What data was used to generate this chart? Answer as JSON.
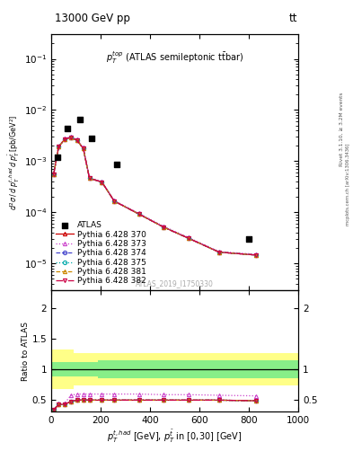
{
  "title_top": "13000 GeV pp",
  "title_right": "tt",
  "annotation": "$p_T^{top}$ (ATLAS semileptonic ttbar)",
  "watermark": "ATLAS_2019_I1750330",
  "right_label": "mcplots.cern.ch [arXiv:1306.3436]",
  "right_label2": "Rivet 3.1.10, ≥ 3.2M events",
  "ylabel_main": "d²σ / d p_T^{t,had} d p_T^{tbar} [pb/GeV²]",
  "ylabel_ratio": "Ratio to ATLAS",
  "xlabel": "p_T^{t,had} [GeV], p_T^{tbar} in [0,30] [GeV]",
  "xlim": [
    0,
    1000
  ],
  "ylim_main": [
    3e-06,
    0.3
  ],
  "ylim_ratio": [
    0.3,
    2.3
  ],
  "atlas_x": [
    25,
    65,
    115,
    165,
    265,
    800
  ],
  "atlas_y": [
    0.0012,
    0.0043,
    0.0065,
    0.0028,
    0.00085,
    3e-05
  ],
  "mc_x": [
    10,
    30,
    55,
    80,
    105,
    130,
    155,
    205,
    255,
    355,
    455,
    555,
    680,
    830
  ],
  "py370_y": [
    0.00055,
    0.0019,
    0.0027,
    0.0029,
    0.00255,
    0.00175,
    0.00046,
    0.00039,
    0.000165,
    9.2e-05,
    5.1e-05,
    3.1e-05,
    1.65e-05,
    1.45e-05
  ],
  "py373_y": [
    0.00055,
    0.0019,
    0.0028,
    0.003,
    0.00265,
    0.00185,
    0.00047,
    0.0004,
    0.00017,
    9.5e-05,
    5.3e-05,
    3.2e-05,
    1.7e-05,
    1.5e-05
  ],
  "py374_y": [
    0.00055,
    0.0019,
    0.0027,
    0.0029,
    0.00255,
    0.00175,
    0.00046,
    0.00039,
    0.000165,
    9.2e-05,
    5.1e-05,
    3.1e-05,
    1.65e-05,
    1.45e-05
  ],
  "py375_y": [
    0.00055,
    0.0019,
    0.00272,
    0.0029,
    0.00255,
    0.00175,
    0.00046,
    0.00039,
    0.000165,
    9.2e-05,
    5.1e-05,
    3.1e-05,
    1.65e-05,
    1.45e-05
  ],
  "py381_y": [
    0.00055,
    0.0019,
    0.0027,
    0.0029,
    0.00255,
    0.00175,
    0.00046,
    0.00039,
    0.000165,
    9.2e-05,
    5.1e-05,
    3.1e-05,
    1.65e-05,
    1.45e-05
  ],
  "py382_y": [
    0.00055,
    0.0019,
    0.0027,
    0.0029,
    0.00255,
    0.00175,
    0.00046,
    0.00039,
    0.000165,
    9.2e-05,
    5.1e-05,
    3.1e-05,
    1.65e-05,
    1.45e-05
  ],
  "ratio_mc_x": [
    10,
    30,
    55,
    80,
    105,
    130,
    155,
    205,
    255,
    355,
    455,
    555,
    680,
    830
  ],
  "ratio_py370": [
    0.33,
    0.42,
    0.42,
    0.47,
    0.49,
    0.49,
    0.49,
    0.49,
    0.49,
    0.49,
    0.49,
    0.49,
    0.49,
    0.48
  ],
  "ratio_py373": [
    0.33,
    0.43,
    0.44,
    0.57,
    0.59,
    0.59,
    0.59,
    0.59,
    0.59,
    0.59,
    0.58,
    0.58,
    0.57,
    0.56
  ],
  "ratio_py374": [
    0.33,
    0.42,
    0.42,
    0.47,
    0.49,
    0.49,
    0.49,
    0.49,
    0.49,
    0.49,
    0.49,
    0.49,
    0.49,
    0.48
  ],
  "ratio_py375": [
    0.33,
    0.42,
    0.42,
    0.47,
    0.49,
    0.49,
    0.49,
    0.49,
    0.49,
    0.49,
    0.49,
    0.49,
    0.49,
    0.48
  ],
  "ratio_py381": [
    0.33,
    0.42,
    0.42,
    0.47,
    0.49,
    0.49,
    0.49,
    0.49,
    0.49,
    0.49,
    0.49,
    0.49,
    0.49,
    0.48
  ],
  "ratio_py382": [
    0.33,
    0.42,
    0.42,
    0.47,
    0.49,
    0.49,
    0.49,
    0.49,
    0.49,
    0.49,
    0.49,
    0.49,
    0.49,
    0.48
  ],
  "band_edges": [
    0,
    45,
    90,
    140,
    190,
    540,
    1000
  ],
  "green_lo": [
    0.88,
    0.88,
    0.88,
    0.88,
    0.85,
    0.85
  ],
  "green_hi": [
    1.12,
    1.12,
    1.12,
    1.12,
    1.15,
    1.15
  ],
  "yellow_lo": [
    0.68,
    0.68,
    0.73,
    0.73,
    0.73,
    0.73
  ],
  "yellow_hi": [
    1.32,
    1.32,
    1.27,
    1.27,
    1.27,
    1.27
  ],
  "color_370": "#cc0000",
  "color_373": "#cc44cc",
  "color_374": "#4444cc",
  "color_375": "#00aaaa",
  "color_381": "#cc8800",
  "color_382": "#cc0044",
  "legend_fontsize": 6.5,
  "tick_labelsize": 7.5
}
